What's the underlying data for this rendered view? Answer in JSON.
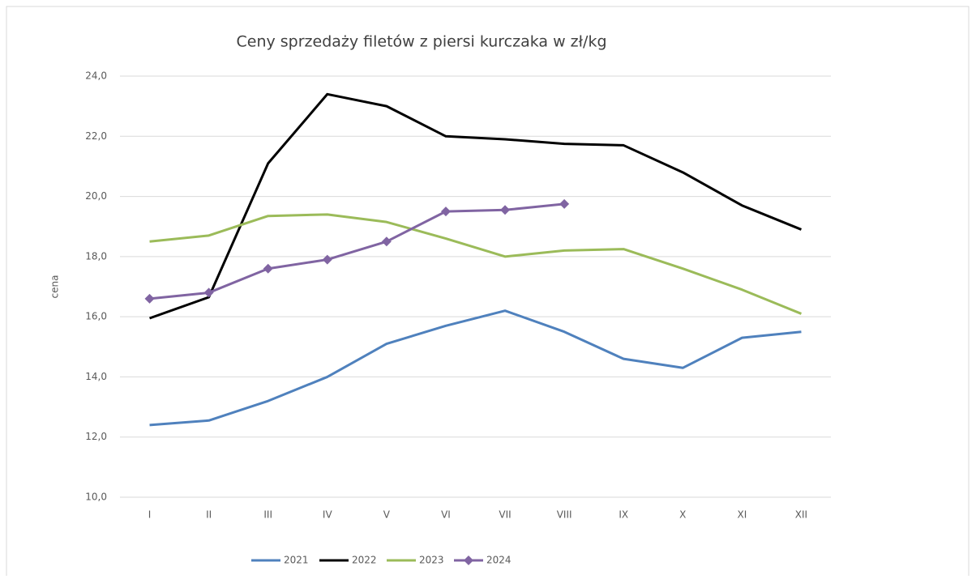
{
  "chart_data": {
    "type": "line",
    "title": "Ceny sprzedaży filetów z piersi kurczaka w zł/kg",
    "y_label": "cena",
    "categories": [
      "I",
      "II",
      "III",
      "IV",
      "V",
      "VI",
      "VII",
      "VIII",
      "IX",
      "X",
      "XI",
      "XII"
    ],
    "series": [
      {
        "name": "2021",
        "color": "#4f81bd",
        "marker": false,
        "values": [
          12.4,
          12.55,
          13.2,
          14.0,
          15.1,
          15.7,
          16.2,
          15.5,
          14.6,
          14.3,
          15.3,
          15.5
        ]
      },
      {
        "name": "2022",
        "color": "#000000",
        "marker": false,
        "values": [
          15.95,
          16.65,
          21.1,
          23.4,
          23.0,
          22.0,
          21.9,
          21.75,
          21.7,
          20.8,
          19.7,
          18.9
        ]
      },
      {
        "name": "2023",
        "color": "#9bbb59",
        "marker": false,
        "values": [
          18.5,
          18.7,
          19.35,
          19.4,
          19.15,
          18.6,
          18.0,
          18.2,
          18.25,
          17.6,
          16.9,
          16.1
        ]
      },
      {
        "name": "2024",
        "color": "#8064a2",
        "marker": true,
        "values": [
          16.6,
          16.8,
          17.6,
          17.9,
          18.5,
          19.5,
          19.55,
          19.75,
          null,
          null,
          null,
          null
        ]
      }
    ],
    "ylim": [
      10,
      24
    ],
    "yticks": [
      {
        "value": 10,
        "label": "10,0"
      },
      {
        "value": 12,
        "label": "12,0"
      },
      {
        "value": 14,
        "label": "14,0"
      },
      {
        "value": 16,
        "label": "16,0"
      },
      {
        "value": 18,
        "label": "18,0"
      },
      {
        "value": 20,
        "label": "20,0"
      },
      {
        "value": 22,
        "label": "22,0"
      },
      {
        "value": 24,
        "label": "24,0"
      }
    ],
    "grid": true,
    "legend": "bottom"
  }
}
